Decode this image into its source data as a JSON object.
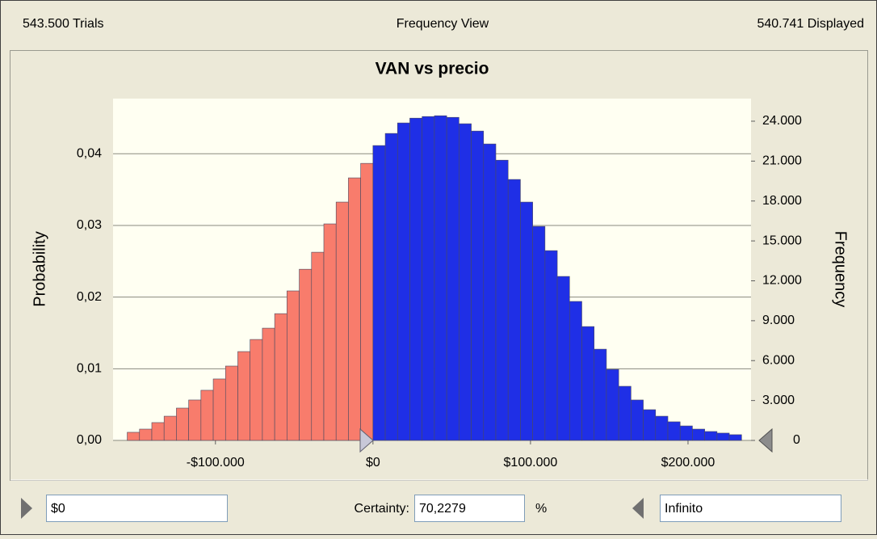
{
  "header": {
    "trials": "543.500 Trials",
    "view": "Frequency View",
    "displayed": "540.741 Displayed"
  },
  "chart_data": {
    "type": "histogram",
    "title": "VAN vs precio",
    "ylabel": "Probability",
    "y2label": "Frequency",
    "bins": [
      -156000,
      -148200,
      -140400,
      -132600,
      -124800,
      -117000,
      -109200,
      -101400,
      -93600,
      -85800,
      -78000,
      -70200,
      -62400,
      -54600,
      -46800,
      -39000,
      -31200,
      -23400,
      -15600,
      -7800,
      0,
      7800,
      15600,
      23400,
      31200,
      39000,
      46800,
      54600,
      62400,
      70200,
      78000,
      85800,
      93600,
      101400,
      109200,
      117000,
      124800,
      132600,
      140400,
      148200,
      156000,
      163800,
      171600,
      179400,
      187200,
      195000,
      202800,
      210600,
      218400,
      226200,
      234000
    ],
    "values": [
      610,
      850,
      1340,
      1820,
      2430,
      3040,
      3770,
      4620,
      5590,
      6680,
      7590,
      8440,
      9530,
      11240,
      12870,
      14150,
      16280,
      17920,
      19740,
      20830,
      22170,
      23080,
      23870,
      24230,
      24350,
      24410,
      24290,
      23810,
      23260,
      22290,
      21070,
      19620,
      17920,
      16090,
      14270,
      12330,
      10450,
      8560,
      6860,
      5340,
      4070,
      3040,
      2310,
      1820,
      1400,
      1090,
      850,
      670,
      550,
      430
    ],
    "axis": "y2",
    "colors": [
      "#f87c6c",
      "#f87c6c",
      "#f87c6c",
      "#f87c6c",
      "#f87c6c",
      "#f87c6c",
      "#f87c6c",
      "#f87c6c",
      "#f87c6c",
      "#f87c6c",
      "#f87c6c",
      "#f87c6c",
      "#f87c6c",
      "#f87c6c",
      "#f87c6c",
      "#f87c6c",
      "#f87c6c",
      "#f87c6c",
      "#f87c6c",
      "#f87c6c",
      "#1f2fe6",
      "#1f2fe6",
      "#1f2fe6",
      "#1f2fe6",
      "#1f2fe6",
      "#1f2fe6",
      "#1f2fe6",
      "#1f2fe6",
      "#1f2fe6",
      "#1f2fe6",
      "#1f2fe6",
      "#1f2fe6",
      "#1f2fe6",
      "#1f2fe6",
      "#1f2fe6",
      "#1f2fe6",
      "#1f2fe6",
      "#1f2fe6",
      "#1f2fe6",
      "#1f2fe6",
      "#1f2fe6",
      "#1f2fe6",
      "#1f2fe6",
      "#1f2fe6",
      "#1f2fe6",
      "#1f2fe6",
      "#1f2fe6",
      "#1f2fe6",
      "#1f2fe6",
      "#1f2fe6"
    ],
    "xlim": [
      -165000,
      240000
    ],
    "xticks": [
      {
        "value": -100000,
        "label": "-$100.000"
      },
      {
        "value": 0,
        "label": "$0"
      },
      {
        "value": 100000,
        "label": "$100.000"
      },
      {
        "value": 200000,
        "label": "$200.000"
      }
    ],
    "ylim": [
      0,
      0.0477
    ],
    "yticks": [
      {
        "value": 0,
        "label": "0,00"
      },
      {
        "value": 0.01,
        "label": "0,01"
      },
      {
        "value": 0.02,
        "label": "0,02"
      },
      {
        "value": 0.03,
        "label": "0,03"
      },
      {
        "value": 0.04,
        "label": "0,04"
      }
    ],
    "y2lim": [
      0,
      25700
    ],
    "y2ticks": [
      0,
      {
        "value": 3000,
        "label": "3.000"
      },
      {
        "value": 6000,
        "label": "6.000"
      },
      {
        "value": 9000,
        "label": "9.000"
      },
      {
        "value": 12000,
        "label": "12.000"
      },
      {
        "value": 15000,
        "label": "15.000"
      },
      {
        "value": 18000,
        "label": "18.000"
      },
      {
        "value": 21000,
        "label": "21.000"
      },
      {
        "value": 24000,
        "label": "24.000"
      }
    ],
    "grid": true
  },
  "controls": {
    "lower": "$0",
    "certainty_label": "Certainty:",
    "certainty": "70,2279",
    "percent": "%",
    "upper": "Infinito"
  }
}
